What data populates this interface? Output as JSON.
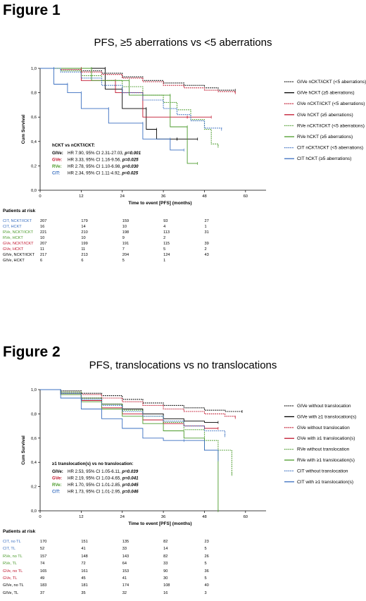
{
  "figures": [
    {
      "figure_label": "Figure 1",
      "title": "PFS, ≥5 aberrations vs <5 aberrations",
      "xlabel": "Time to event [PFS] (months)",
      "ylabel": "Cum Survival",
      "xticks": [
        "0",
        "12",
        "24",
        "36",
        "48",
        "60"
      ],
      "yticks": [
        "0,0",
        "0,2",
        "0,4",
        "0,6",
        "0,8",
        "1,0"
      ],
      "hr_header": "hCKT vs nCKT/iCKT:",
      "hr": [
        {
          "group": "GIVe:",
          "text": "HR 7.90, 95% CI 2.31-27.03, ",
          "p": "p=0.001",
          "color": "#000000"
        },
        {
          "group": "GVe:",
          "text": "HR 3.33, 95% CI 1.16-9.56, ",
          "p": "p=0.025",
          "color": "#c0142c"
        },
        {
          "group": "RVe:",
          "text": "HR 2.78, 95% CI 1.10-6.98, ",
          "p": "p=0.030",
          "color": "#4a9a2a"
        },
        {
          "group": "CIT:",
          "text": "HR 2.34, 95% CI 1.11-4.92, ",
          "p": "p=0.025",
          "color": "#3a6fc0"
        }
      ],
      "legend": [
        {
          "text": "GIVe nCKT/iCKT  (<5 aberrations)",
          "color": "#000000",
          "dashed": true
        },
        {
          "text": "GIVe hCKT  (≥5 aberrations)",
          "color": "#000000",
          "dashed": false
        },
        {
          "text": "GVe nCKT/iCKT  (<5 aberrations)",
          "color": "#c0142c",
          "dashed": true
        },
        {
          "text": "GVe hCKT  (≥5 aberrations)",
          "color": "#c0142c",
          "dashed": false
        },
        {
          "text": "RVe nCKT/iCKT  (<5 aberrations)",
          "color": "#4a9a2a",
          "dashed": true
        },
        {
          "text": "RVe hCKT  (≥5 aberrations)",
          "color": "#4a9a2a",
          "dashed": false
        },
        {
          "text": "CIT nCKT/iCKT  (<5 aberrations)",
          "color": "#3a6fc0",
          "dashed": true
        },
        {
          "text": "CIT hCKT  (≥5 aberrations)",
          "color": "#3a6fc0",
          "dashed": false
        }
      ],
      "risk_header": "Patients at risk",
      "risk_rows": [
        {
          "label": "CIT, NCKT/ICKT",
          "color": "#3a6fc0",
          "values": [
            "207",
            "179",
            "159",
            "93",
            "27"
          ]
        },
        {
          "label": "CIT, HCKT",
          "color": "#3a6fc0",
          "values": [
            "16",
            "14",
            "10",
            "4",
            "1"
          ]
        },
        {
          "label": "RVe, NCKT/ICKT",
          "color": "#4a9a2a",
          "values": [
            "221",
            "210",
            "198",
            "113",
            "31"
          ]
        },
        {
          "label": "RVe, HCKT",
          "color": "#4a9a2a",
          "values": [
            "10",
            "10",
            "9",
            "2",
            ""
          ]
        },
        {
          "label": "GVe, NCKT/ICKT",
          "color": "#c0142c",
          "values": [
            "207",
            "199",
            "191",
            "115",
            "39"
          ]
        },
        {
          "label": "GVe, HCKT",
          "color": "#c0142c",
          "values": [
            "11",
            "11",
            "7",
            "5",
            "2"
          ]
        },
        {
          "label": "GIVe, NCKT/ICKT",
          "color": "#000000",
          "values": [
            "217",
            "213",
            "204",
            "124",
            "43"
          ]
        },
        {
          "label": "GIVe, HCKT",
          "color": "#000000",
          "values": [
            "6",
            "6",
            "5",
            "1",
            ""
          ]
        }
      ]
    },
    {
      "figure_label": "Figure 2",
      "title": "PFS, translocations vs no translocations",
      "xlabel": "Time to event [PFS] (months)",
      "ylabel": "Cum Survival",
      "xticks": [
        "0",
        "12",
        "24",
        "36",
        "48",
        "60"
      ],
      "yticks": [
        "0,0",
        "0,2",
        "0,4",
        "0,6",
        "0,8",
        "1,0"
      ],
      "hr_header": "≥1 translocation(s) vs no translocation:",
      "hr": [
        {
          "group": "GIVe:",
          "text": "HR 2.53, 95% CI 1.05-6.11, ",
          "p": "p=0.039",
          "color": "#000000"
        },
        {
          "group": "GVe:",
          "text": "HR 2.19, 95% CI 1.03-4.65, ",
          "p": "p=0.041",
          "color": "#c0142c"
        },
        {
          "group": "RVe:",
          "text": "HR 1.70, 95% CI 1.01-2.85, ",
          "p": "p=0.045",
          "color": "#4a9a2a"
        },
        {
          "group": "CIT:",
          "text": "HR 1.73, 95% CI 1.01-2.95, ",
          "p": "p=0.046",
          "color": "#3a6fc0"
        }
      ],
      "legend": [
        {
          "text": "GIVe without translocation",
          "color": "#000000",
          "dashed": true
        },
        {
          "text": "GIVe with ≥1 translocation(s)",
          "color": "#000000",
          "dashed": false
        },
        {
          "text": "GVe without translocation",
          "color": "#c0142c",
          "dashed": true
        },
        {
          "text": "GVe with ≥1 translocation(s)",
          "color": "#c0142c",
          "dashed": false
        },
        {
          "text": "RVe without translocation",
          "color": "#4a9a2a",
          "dashed": true
        },
        {
          "text": "RVe with ≥1 translocation(s)",
          "color": "#4a9a2a",
          "dashed": false
        },
        {
          "text": "CIT without translocation",
          "color": "#3a6fc0",
          "dashed": true
        },
        {
          "text": "CIT with ≥1  translocation(s)",
          "color": "#3a6fc0",
          "dashed": false
        }
      ],
      "risk_header": "Patients at risk",
      "risk_rows": [
        {
          "label": "CIT, no TL",
          "color": "#3a6fc0",
          "values": [
            "170",
            "151",
            "135",
            "82",
            "23"
          ]
        },
        {
          "label": "CIT, TL",
          "color": "#3a6fc0",
          "values": [
            "52",
            "41",
            "33",
            "14",
            "5"
          ]
        },
        {
          "label": "RVe, no TL",
          "color": "#4a9a2a",
          "values": [
            "157",
            "148",
            "143",
            "82",
            "26"
          ]
        },
        {
          "label": "RVe, TL",
          "color": "#4a9a2a",
          "values": [
            "74",
            "72",
            "64",
            "33",
            "5"
          ]
        },
        {
          "label": "GVe, no TL",
          "color": "#c0142c",
          "values": [
            "165",
            "161",
            "153",
            "90",
            "36"
          ]
        },
        {
          "label": "GVe, TL",
          "color": "#c0142c",
          "values": [
            "49",
            "45",
            "41",
            "30",
            "5"
          ]
        },
        {
          "label": "GIVe, no TL",
          "color": "#000000",
          "values": [
            "183",
            "181",
            "174",
            "108",
            "40"
          ]
        },
        {
          "label": "GIVe, TL",
          "color": "#000000",
          "values": [
            "37",
            "35",
            "32",
            "16",
            "3"
          ]
        }
      ]
    }
  ],
  "chart_data": [
    {
      "type": "line",
      "title": "PFS, ≥5 aberrations vs <5 aberrations",
      "xlabel": "Time to event [PFS] (months)",
      "ylabel": "Cum Survival",
      "xlim": [
        0,
        66
      ],
      "ylim": [
        0,
        1
      ],
      "grid": false,
      "legend_position": "right",
      "series": [
        {
          "name": "GIVe nCKT/iCKT  (<5 aberrations)",
          "color": "#000000",
          "dashed": true,
          "x": [
            0,
            6,
            12,
            18,
            24,
            30,
            36,
            42,
            48,
            52,
            57
          ],
          "y": [
            1.0,
            0.99,
            0.98,
            0.96,
            0.93,
            0.9,
            0.88,
            0.86,
            0.84,
            0.82,
            0.82
          ]
        },
        {
          "name": "GIVe hCKT  (≥5 aberrations)",
          "color": "#000000",
          "dashed": false,
          "x": [
            0,
            19,
            19,
            24,
            24,
            31,
            31,
            34,
            34,
            40,
            40,
            46
          ],
          "y": [
            1.0,
            1.0,
            0.83,
            0.83,
            0.67,
            0.67,
            0.5,
            0.5,
            0.42,
            0.42,
            0.42,
            0.42
          ]
        },
        {
          "name": "GVe nCKT/iCKT  (<5 aberrations)",
          "color": "#c0142c",
          "dashed": true,
          "x": [
            0,
            6,
            12,
            18,
            24,
            30,
            36,
            42,
            48,
            52,
            57
          ],
          "y": [
            1.0,
            0.99,
            0.97,
            0.95,
            0.92,
            0.89,
            0.86,
            0.84,
            0.82,
            0.81,
            0.8
          ]
        },
        {
          "name": "GVe hCKT  (≥5 aberrations)",
          "color": "#c0142c",
          "dashed": false,
          "x": [
            0,
            12,
            12,
            22,
            22,
            30,
            30,
            43,
            43,
            50
          ],
          "y": [
            1.0,
            1.0,
            0.9,
            0.9,
            0.8,
            0.8,
            0.6,
            0.6,
            0.6,
            0.6
          ]
        },
        {
          "name": "RVe nCKT/iCKT  (<5 aberrations)",
          "color": "#4a9a2a",
          "dashed": true,
          "x": [
            0,
            6,
            12,
            18,
            24,
            30,
            36,
            40,
            44,
            48,
            50,
            52
          ],
          "y": [
            1.0,
            0.98,
            0.94,
            0.9,
            0.85,
            0.78,
            0.72,
            0.66,
            0.58,
            0.5,
            0.38,
            0.36
          ]
        },
        {
          "name": "RVe hCKT  (≥5 aberrations)",
          "color": "#4a9a2a",
          "dashed": false,
          "x": [
            0,
            15,
            15,
            26,
            26,
            38,
            38,
            43,
            43,
            46
          ],
          "y": [
            1.0,
            1.0,
            0.9,
            0.9,
            0.78,
            0.78,
            0.52,
            0.52,
            0.22,
            0.22
          ]
        },
        {
          "name": "CIT nCKT/iCKT  (<5 aberrations)",
          "color": "#3a6fc0",
          "dashed": true,
          "x": [
            0,
            6,
            12,
            18,
            24,
            30,
            36,
            40,
            44,
            48,
            53
          ],
          "y": [
            1.0,
            0.97,
            0.92,
            0.86,
            0.8,
            0.74,
            0.67,
            0.62,
            0.57,
            0.51,
            0.5
          ]
        },
        {
          "name": "CIT hCKT  (≥5 aberrations)",
          "color": "#3a6fc0",
          "dashed": false,
          "x": [
            0,
            4,
            4,
            8,
            8,
            12,
            12,
            20,
            20,
            30,
            30,
            38,
            38,
            42
          ],
          "y": [
            1.0,
            1.0,
            0.87,
            0.87,
            0.8,
            0.8,
            0.67,
            0.67,
            0.55,
            0.55,
            0.42,
            0.42,
            0.33,
            0.33
          ]
        }
      ]
    },
    {
      "type": "line",
      "title": "PFS, translocations vs no translocations",
      "xlabel": "Time to event [PFS] (months)",
      "ylabel": "Cum Survival",
      "xlim": [
        0,
        66
      ],
      "ylim": [
        0,
        1
      ],
      "grid": false,
      "legend_position": "right",
      "series": [
        {
          "name": "GIVe without translocation",
          "color": "#000000",
          "dashed": true,
          "x": [
            0,
            6,
            12,
            18,
            24,
            30,
            36,
            42,
            48,
            54,
            59
          ],
          "y": [
            1.0,
            0.99,
            0.97,
            0.95,
            0.92,
            0.89,
            0.87,
            0.85,
            0.83,
            0.82,
            0.82
          ]
        },
        {
          "name": "GIVe with ≥1 translocation(s)",
          "color": "#000000",
          "dashed": false,
          "x": [
            0,
            6,
            12,
            18,
            24,
            30,
            36,
            42,
            48,
            52
          ],
          "y": [
            1.0,
            0.97,
            0.93,
            0.88,
            0.84,
            0.8,
            0.76,
            0.74,
            0.73,
            0.73
          ]
        },
        {
          "name": "GVe without translocation",
          "color": "#c0142c",
          "dashed": true,
          "x": [
            0,
            6,
            12,
            18,
            24,
            30,
            36,
            42,
            48,
            54,
            57
          ],
          "y": [
            1.0,
            0.98,
            0.96,
            0.93,
            0.9,
            0.87,
            0.84,
            0.82,
            0.8,
            0.78,
            0.77
          ]
        },
        {
          "name": "GVe with ≥1 translocation(s)",
          "color": "#c0142c",
          "dashed": false,
          "x": [
            0,
            6,
            12,
            18,
            24,
            30,
            36,
            42,
            48,
            52
          ],
          "y": [
            1.0,
            0.96,
            0.91,
            0.85,
            0.8,
            0.75,
            0.72,
            0.7,
            0.68,
            0.68
          ]
        },
        {
          "name": "RVe without translocation",
          "color": "#4a9a2a",
          "dashed": true,
          "x": [
            0,
            6,
            12,
            18,
            24,
            30,
            36,
            42,
            48,
            52,
            56
          ],
          "y": [
            1.0,
            0.98,
            0.93,
            0.88,
            0.83,
            0.78,
            0.73,
            0.67,
            0.58,
            0.5,
            0.3
          ]
        },
        {
          "name": "RVe with ≥1 translocation(s)",
          "color": "#4a9a2a",
          "dashed": false,
          "x": [
            0,
            6,
            12,
            18,
            24,
            30,
            36,
            42,
            48,
            52,
            52
          ],
          "y": [
            1.0,
            0.96,
            0.9,
            0.84,
            0.78,
            0.72,
            0.66,
            0.6,
            0.5,
            0.4,
            0.0
          ]
        },
        {
          "name": "CIT without translocation",
          "color": "#3a6fc0",
          "dashed": true,
          "x": [
            0,
            6,
            12,
            18,
            24,
            30,
            36,
            42,
            48,
            54
          ],
          "y": [
            1.0,
            0.97,
            0.92,
            0.87,
            0.82,
            0.78,
            0.74,
            0.7,
            0.66,
            0.62
          ]
        },
        {
          "name": "CIT with ≥1  translocation(s)",
          "color": "#3a6fc0",
          "dashed": false,
          "x": [
            0,
            6,
            12,
            18,
            24,
            30,
            36,
            42,
            48,
            52
          ],
          "y": [
            1.0,
            0.93,
            0.84,
            0.76,
            0.68,
            0.6,
            0.58,
            0.58,
            0.5,
            0.42
          ]
        }
      ]
    }
  ]
}
